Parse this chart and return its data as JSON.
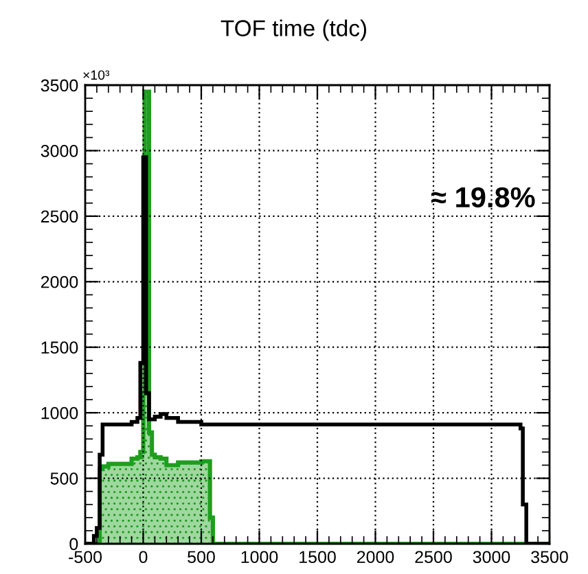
{
  "chart_data": {
    "type": "histogram",
    "title": "TOF time (tdc)",
    "bins": [
      -500,
      -425,
      -400,
      -375,
      -350,
      -300,
      -100,
      -50,
      -25,
      0,
      12,
      25,
      50,
      75,
      100,
      150,
      200,
      300,
      500,
      575,
      600,
      3250,
      3270,
      3300,
      3500
    ],
    "series": [
      {
        "color": "#000000",
        "type": "step",
        "x": [
          -500,
          -425,
          -400,
          -375,
          -350,
          -300,
          -100,
          -50,
          -25,
          0,
          12,
          25,
          50,
          75,
          100,
          150,
          200,
          300,
          500,
          575,
          600,
          3250,
          3270,
          3300,
          3500
        ],
        "values": [
          0,
          60,
          120,
          680,
          910,
          910,
          930,
          960,
          1380,
          2950,
          2950,
          1150,
          950,
          950,
          970,
          990,
          960,
          930,
          910,
          910,
          910,
          880,
          300,
          0,
          0
        ]
      },
      {
        "color": "#1e9e1e",
        "type": "histogram",
        "values": [
          0,
          0,
          0,
          570,
          590,
          610,
          650,
          660,
          700,
          1150,
          3450,
          3450,
          850,
          680,
          660,
          650,
          600,
          620,
          630,
          200,
          0,
          0,
          0,
          0
        ]
      }
    ],
    "xlim": [
      -500,
      3500
    ],
    "xticks": [
      -500,
      0,
      500,
      1000,
      1500,
      2000,
      2500,
      3000,
      3500
    ],
    "ylim": [
      0,
      3500
    ],
    "yticks": [
      0,
      500,
      1000,
      1500,
      2000,
      2500,
      3000,
      3500
    ],
    "grid": true,
    "annotations": [
      "×10³",
      "≈ 19.8%"
    ]
  }
}
